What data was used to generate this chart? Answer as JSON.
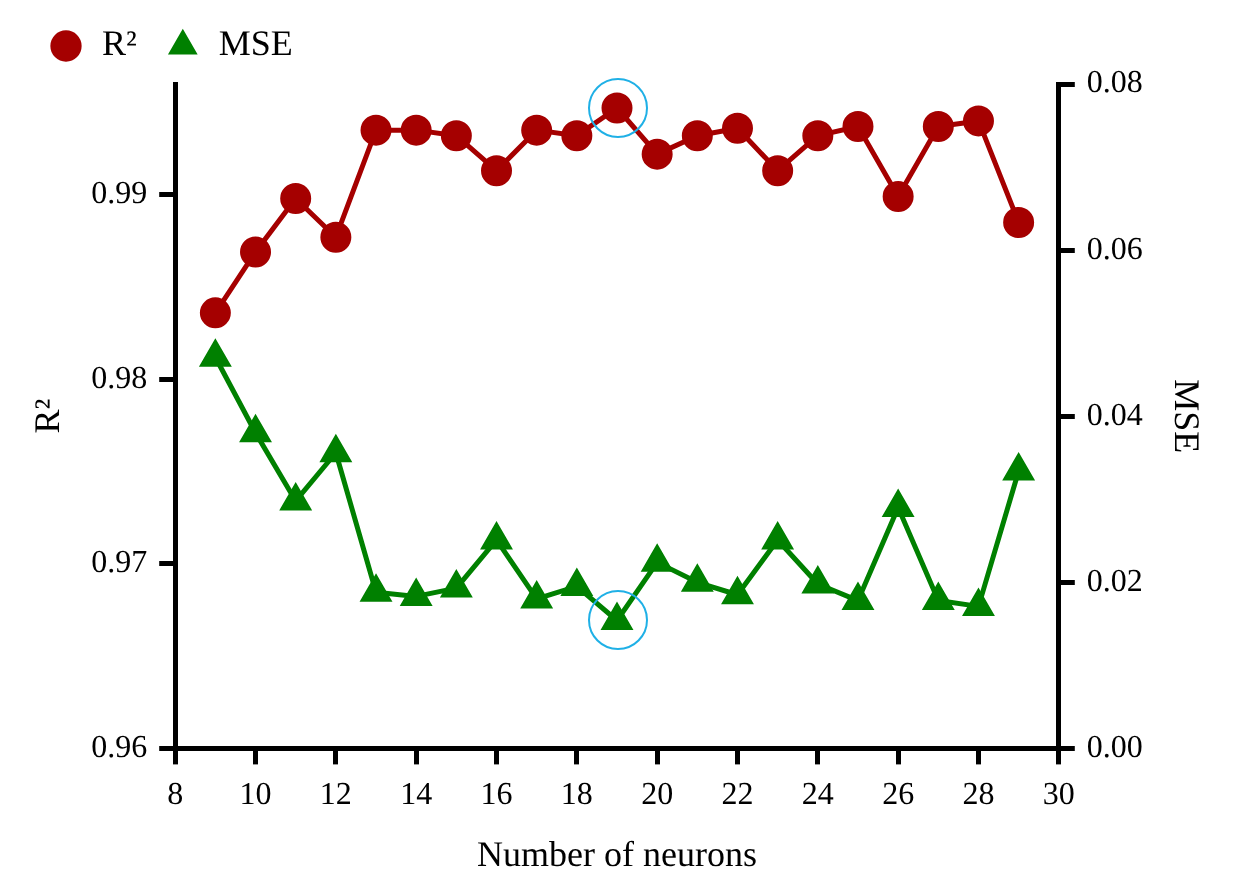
{
  "chart_data": {
    "type": "line",
    "xlabel": "Number of neurons",
    "ylabel": "R²",
    "y2label": "MSE",
    "x": [
      9,
      10,
      11,
      12,
      13,
      14,
      15,
      16,
      17,
      18,
      19,
      20,
      21,
      22,
      23,
      24,
      25,
      26,
      27,
      28,
      29
    ],
    "series": [
      {
        "name": "R²",
        "color": "#a50000",
        "marker": "circle",
        "values": [
          0.9836,
          0.9869,
          0.9898,
          0.9877,
          0.9935,
          0.9935,
          0.9932,
          0.9913,
          0.9935,
          0.9932,
          0.9947,
          0.9922,
          0.9932,
          0.9936,
          0.9913,
          0.9932,
          0.9937,
          0.9899,
          0.9937,
          0.994,
          0.9885
        ]
      },
      {
        "name": "MSE",
        "color": "#008000",
        "marker": "triangle",
        "axis": "y2",
        "values": [
          0.0471,
          0.038,
          0.0298,
          0.0356,
          0.0188,
          0.0183,
          0.0193,
          0.0251,
          0.018,
          0.0195,
          0.0154,
          0.0224,
          0.02,
          0.0185,
          0.0251,
          0.0198,
          0.0178,
          0.029,
          0.0178,
          0.0171,
          0.0334
        ]
      }
    ],
    "xlim": [
      8,
      30
    ],
    "xticks": [
      8,
      10,
      12,
      14,
      16,
      18,
      20,
      22,
      24,
      26,
      28,
      30
    ],
    "ylim": [
      0.96,
      0.996
    ],
    "yticks": [
      0.96,
      0.97,
      0.98,
      0.99
    ],
    "y2lim": [
      0,
      0.08
    ],
    "y2ticks": [
      {
        "value": 0,
        "label": "0.00"
      },
      {
        "value": 0.02,
        "label": "0.02"
      },
      {
        "value": 0.04,
        "label": "0.04"
      },
      {
        "value": 0.06,
        "label": "0.06"
      },
      {
        "value": 0.08,
        "label": "0.08"
      }
    ],
    "grid": false,
    "legend": "top left",
    "line_style": "solid"
  }
}
